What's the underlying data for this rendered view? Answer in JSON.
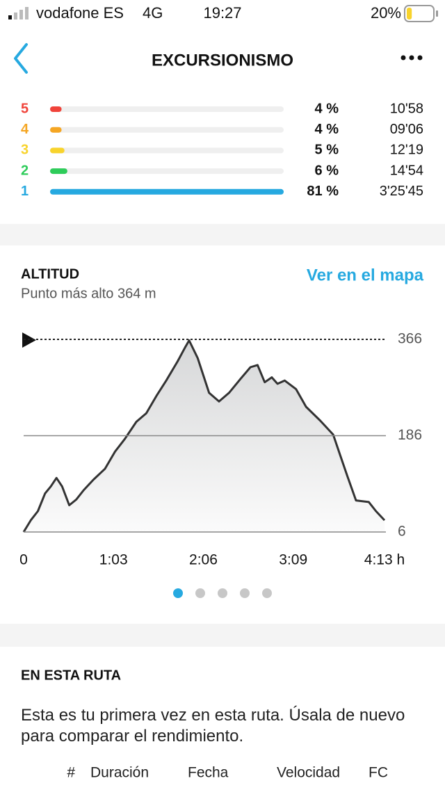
{
  "status": {
    "carrier": "vodafone ES",
    "network": "4G",
    "time": "19:27",
    "battery": {
      "value": 20,
      "label": "20%"
    }
  },
  "header": {
    "title": "EXCURSIONISMO"
  },
  "zones": [
    {
      "zone": "5",
      "color": "#f0433a",
      "percent": 4,
      "percent_label": "4 %",
      "time": "10'58"
    },
    {
      "zone": "4",
      "color": "#f5a623",
      "percent": 4,
      "percent_label": "4 %",
      "time": "09'06"
    },
    {
      "zone": "3",
      "color": "#f8d32c",
      "percent": 5,
      "percent_label": "5 %",
      "time": "12'19"
    },
    {
      "zone": "2",
      "color": "#2ecc5a",
      "percent": 6,
      "percent_label": "6 %",
      "time": "14'54"
    },
    {
      "zone": "1",
      "color": "#26a9e0",
      "percent": 81,
      "percent_label": "81 %",
      "time": "3'25'45"
    }
  ],
  "map_link": "Ver en el mapa",
  "chart_data": {
    "type": "area",
    "title": "ALTITUD",
    "subtitle": "Punto más alto 364 m",
    "x": [
      0,
      5,
      10,
      15,
      19,
      23,
      27,
      32,
      37,
      42,
      49,
      57,
      64,
      71,
      79,
      86,
      93,
      100,
      108,
      113,
      116,
      122,
      130,
      137,
      144,
      152,
      159,
      164,
      169,
      174,
      178,
      183,
      191,
      198,
      208,
      217,
      222,
      227,
      233,
      242,
      247,
      253
    ],
    "values": [
      6,
      28,
      45,
      78,
      91,
      107,
      91,
      56,
      67,
      84,
      104,
      124,
      156,
      180,
      212,
      228,
      260,
      289,
      325,
      350,
      364,
      331,
      266,
      250,
      266,
      292,
      314,
      318,
      286,
      295,
      283,
      289,
      273,
      240,
      214,
      188,
      149,
      110,
      65,
      62,
      45,
      28
    ],
    "color": "#333333",
    "xlim": [
      0,
      253
    ],
    "xticks": [
      0,
      {
        "value": 63,
        "label": "1:03"
      },
      {
        "value": 126,
        "label": "2:06"
      },
      {
        "value": 189,
        "label": "3:09"
      },
      {
        "value": 253,
        "label": "4:13 h"
      }
    ],
    "ylim": [
      6,
      366
    ],
    "yticks": [
      6,
      186,
      366
    ],
    "grid": true
  },
  "route": {
    "title": "EN ESTA RUTA",
    "text": "Esta es tu primera vez en esta ruta. Úsala de nuevo para comparar el rendimiento.",
    "columns": [
      "#",
      "Duración",
      "Fecha",
      "Velocidad",
      "FC"
    ]
  }
}
